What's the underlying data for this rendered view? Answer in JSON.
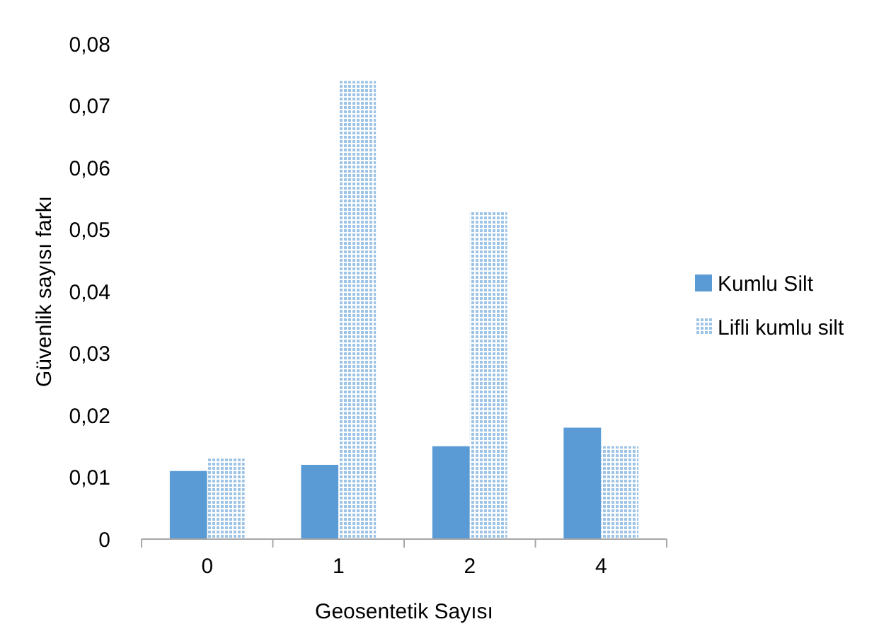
{
  "chart_data": {
    "type": "bar",
    "xlabel": "Geosentetik Sayısı",
    "ylabel": "Güvenlik sayısı farkı",
    "categories": [
      "0",
      "1",
      "2",
      "4"
    ],
    "series": [
      {
        "name": "Kumlu Silt",
        "color": "#5b9bd5",
        "values": [
          0.011,
          0.012,
          0.015,
          0.018
        ]
      },
      {
        "name": "Lifli kumlu silt",
        "color": "#9dc3e6",
        "values": [
          0.013,
          0.074,
          0.053,
          0.015
        ]
      }
    ],
    "ylim": [
      0,
      0.08
    ],
    "yticks": [
      0,
      {
        "value": 0.01,
        "label": "0,01"
      },
      {
        "value": 0.02,
        "label": "0,02"
      },
      {
        "value": 0.03,
        "label": "0,03"
      },
      {
        "value": 0.04,
        "label": "0,04"
      },
      {
        "value": 0.05,
        "label": "0,05"
      },
      {
        "value": 0.06,
        "label": "0,06"
      },
      {
        "value": 0.07,
        "label": "0,07"
      },
      {
        "value": 0.08,
        "label": "0,08"
      }
    ],
    "grid": false,
    "legend": "right"
  }
}
